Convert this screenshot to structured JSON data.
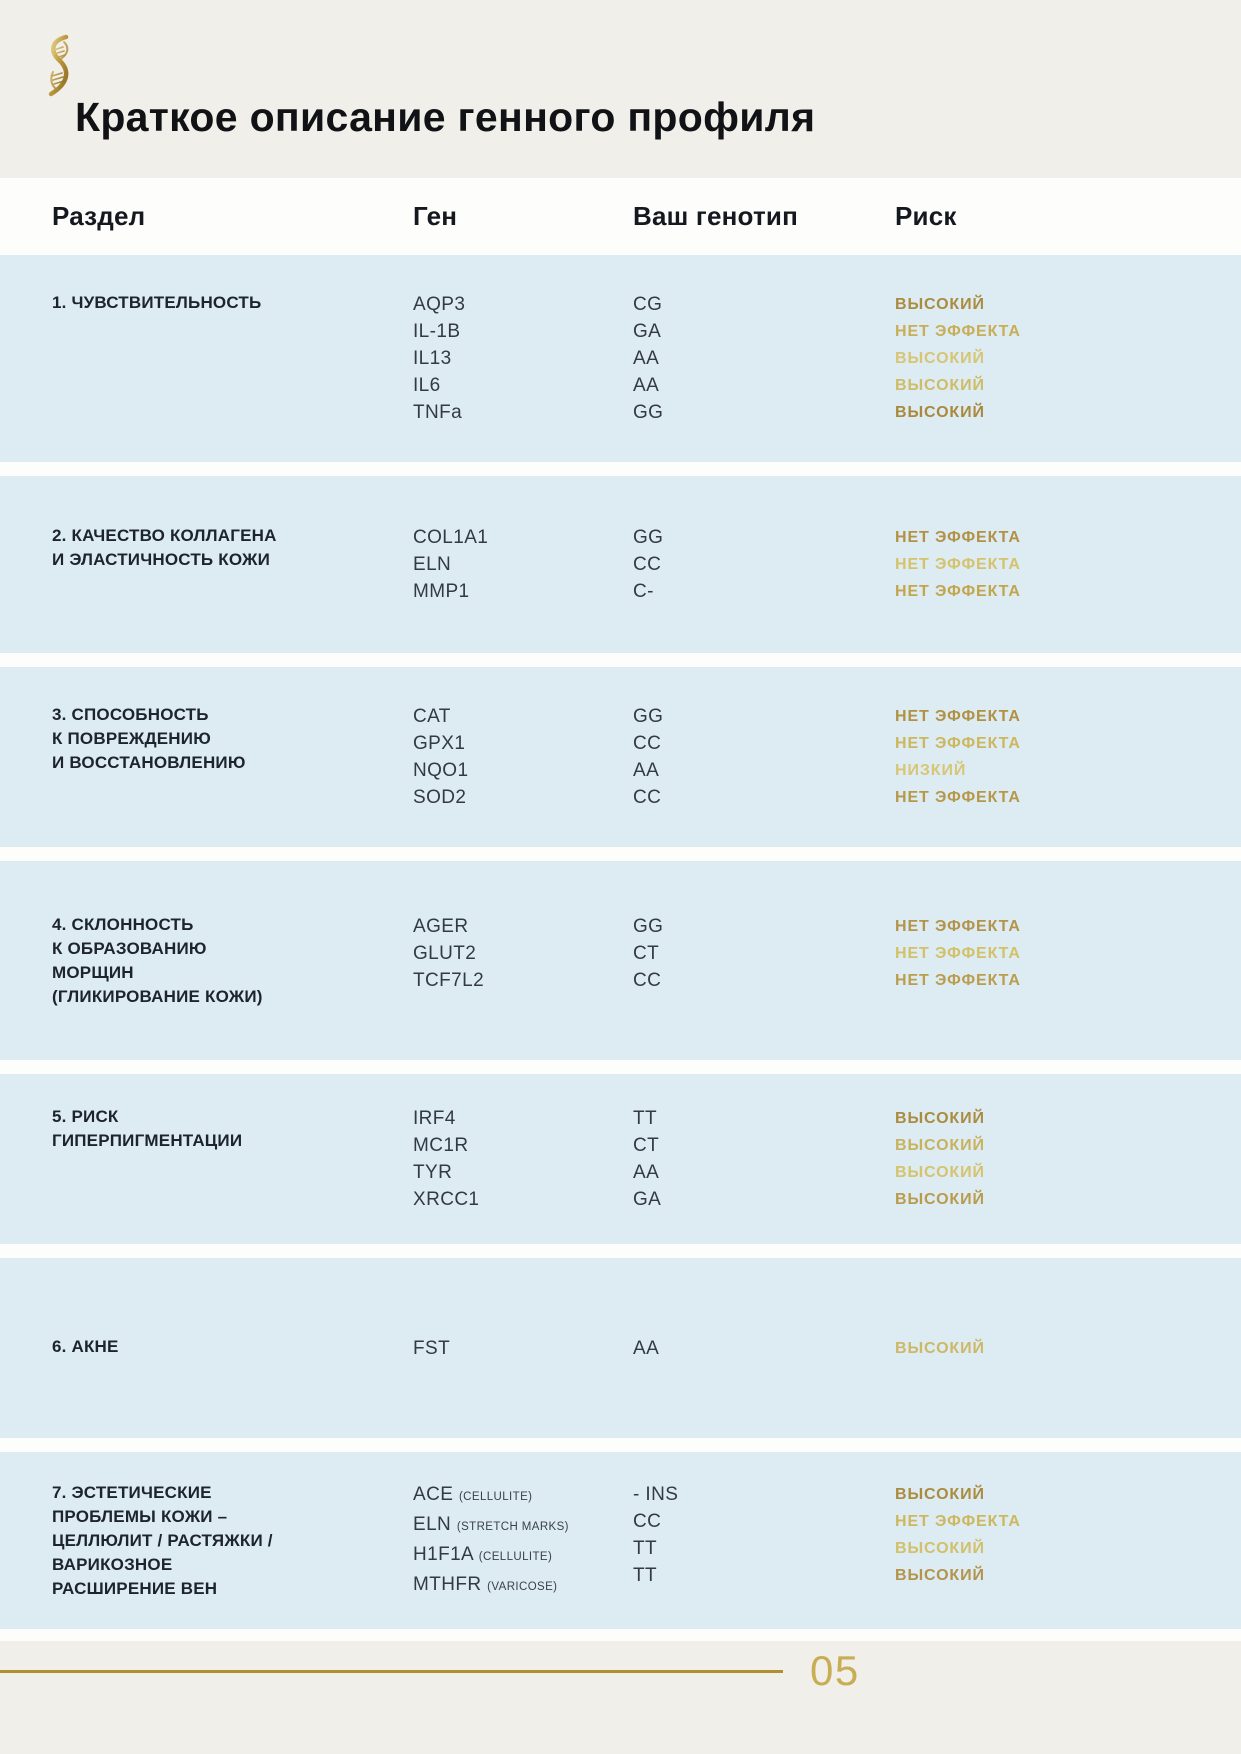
{
  "page": {
    "title": "Краткое описание генного профиля",
    "page_number": "05",
    "logo_icon": "dna-helix-logo",
    "colors": {
      "background_cream": "#f0efe9",
      "band_blue": "#ddebf3",
      "gap_white": "#fdfdfc",
      "gold_rule": "#b18e2e",
      "gold_text_dark": "#ab8c3e",
      "gold_text_light": "#d7c573",
      "heading_text": "#15191f",
      "body_text": "#333a45"
    }
  },
  "table": {
    "headers": {
      "section": "Раздел",
      "gene": "Ген",
      "genotype": "Ваш генотип",
      "risk": "Риск"
    },
    "sections": [
      {
        "title_lines": [
          "1. ЧУВСТВИТЕЛЬНОСТЬ"
        ],
        "rows": [
          {
            "gene": "AQP3",
            "note": "",
            "genotype": "CG",
            "risk": "ВЫСОКИЙ",
            "risk_color": "#ab8c3e"
          },
          {
            "gene": "IL-1B",
            "note": "",
            "genotype": "GA",
            "risk": "НЕТ ЭФФЕКТА",
            "risk_color": "#c7ae57"
          },
          {
            "gene": "IL13",
            "note": "",
            "genotype": "AA",
            "risk": "ВЫСОКИЙ",
            "risk_color": "#d7c573"
          },
          {
            "gene": "IL6",
            "note": "",
            "genotype": "AA",
            "risk": "ВЫСОКИЙ",
            "risk_color": "#cfbc66"
          },
          {
            "gene": "TNFa",
            "note": "",
            "genotype": "GG",
            "risk": "ВЫСОКИЙ",
            "risk_color": "#a98a3c"
          }
        ]
      },
      {
        "title_lines": [
          "2. КАЧЕСТВО КОЛЛАГЕНА",
          "И ЭЛАСТИЧНОСТЬ КОЖИ"
        ],
        "rows": [
          {
            "gene": "COL1A1",
            "note": "",
            "genotype": "GG",
            "risk": "НЕТ ЭФФЕКТА",
            "risk_color": "#b29245"
          },
          {
            "gene": "ELN",
            "note": "",
            "genotype": "CC",
            "risk": "НЕТ ЭФФЕКТА",
            "risk_color": "#d5c36c"
          },
          {
            "gene": "MMP1",
            "note": "",
            "genotype": "C-",
            "risk": "НЕТ ЭФФЕКТА",
            "risk_color": "#c2a64d"
          }
        ]
      },
      {
        "title_lines": [
          "3. СПОСОБНОСТЬ",
          "К ПОВРЕЖДЕНИЮ",
          "И ВОССТАНОВЛЕНИЮ"
        ],
        "rows": [
          {
            "gene": "CAT",
            "note": "",
            "genotype": "GG",
            "risk": "НЕТ ЭФФЕКТА",
            "risk_color": "#b19143"
          },
          {
            "gene": "GPX1",
            "note": "",
            "genotype": "CC",
            "risk": "НЕТ ЭФФЕКТА",
            "risk_color": "#ccb75f"
          },
          {
            "gene": "NQO1",
            "note": "",
            "genotype": "AA",
            "risk": "НИЗКИЙ",
            "risk_color": "#d8c676"
          },
          {
            "gene": "SOD2",
            "note": "",
            "genotype": "CC",
            "risk": "НЕТ ЭФФЕКТА",
            "risk_color": "#b69849"
          }
        ]
      },
      {
        "title_lines": [
          "4. СКЛОННОСТЬ",
          "К ОБРАЗОВАНИЮ",
          "МОРЩИН",
          "(ГЛИКИРОВАНИЕ КОЖИ)"
        ],
        "rows": [
          {
            "gene": "AGER",
            "note": "",
            "genotype": "GG",
            "risk": "НЕТ ЭФФЕКТА",
            "risk_color": "#b4944a"
          },
          {
            "gene": "GLUT2",
            "note": "",
            "genotype": "CT",
            "risk": "НЕТ ЭФФЕКТА",
            "risk_color": "#d3c168"
          },
          {
            "gene": "TCF7L2",
            "note": "",
            "genotype": "CC",
            "risk": "НЕТ ЭФФЕКТА",
            "risk_color": "#bb9d4e"
          }
        ]
      },
      {
        "title_lines": [
          "5. РИСК",
          "ГИПЕРПИГМЕНТАЦИИ"
        ],
        "rows": [
          {
            "gene": "IRF4",
            "note": "",
            "genotype": "TT",
            "risk": "ВЫСОКИЙ",
            "risk_color": "#ab8c3e"
          },
          {
            "gene": "MC1R",
            "note": "",
            "genotype": "CT",
            "risk": "ВЫСОКИЙ",
            "risk_color": "#c9b25c"
          },
          {
            "gene": "TYR",
            "note": "",
            "genotype": "AA",
            "risk": "ВЫСОКИЙ",
            "risk_color": "#d5c36e"
          },
          {
            "gene": "XRCC1",
            "note": "",
            "genotype": "GA",
            "risk": "ВЫСОКИЙ",
            "risk_color": "#b99b4c"
          }
        ]
      },
      {
        "title_lines": [
          "6. АКНЕ"
        ],
        "rows": [
          {
            "gene": "FST",
            "note": "",
            "genotype": "AA",
            "risk": "ВЫСОКИЙ",
            "risk_color": "#cdb965"
          }
        ]
      },
      {
        "title_lines": [
          "7. ЭСТЕТИЧЕСКИЕ",
          "ПРОБЛЕМЫ КОЖИ –",
          "ЦЕЛЛЮЛИТ / РАСТЯЖКИ /",
          "ВАРИКОЗНОЕ",
          "РАСШИРЕНИЕ ВЕН"
        ],
        "rows": [
          {
            "gene": "ACE",
            "note": "(CELLULITE)",
            "genotype": "- INS",
            "risk": "ВЫСОКИЙ",
            "risk_color": "#ab8c3e"
          },
          {
            "gene": "ELN",
            "note": "(STRETCH MARKS)",
            "genotype": "CC",
            "risk": "НЕТ ЭФФЕКТА",
            "risk_color": "#cdb85f"
          },
          {
            "gene": "H1F1A",
            "note": "(CELLULITE)",
            "genotype": "TT",
            "risk": "ВЫСОКИЙ",
            "risk_color": "#d2c06a"
          },
          {
            "gene": "MTHFR",
            "note": "(VARICOSE)",
            "genotype": "TT",
            "risk": "ВЫСОКИЙ",
            "risk_color": "#b3944a"
          }
        ]
      }
    ]
  }
}
